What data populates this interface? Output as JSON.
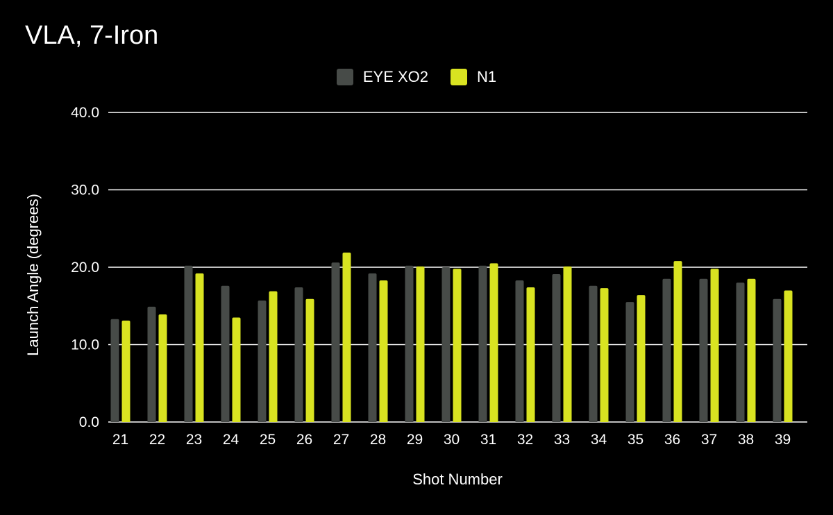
{
  "chart_data": {
    "type": "bar",
    "title": "VLA, 7-Iron",
    "xlabel": "Shot Number",
    "ylabel": "Launch Angle (degrees)",
    "ylim": [
      0,
      40
    ],
    "yticks": [
      "0.0",
      "10.0",
      "20.0",
      "30.0",
      "40.0"
    ],
    "grid": true,
    "legend_position": "top-center",
    "categories": [
      "21",
      "22",
      "23",
      "24",
      "25",
      "26",
      "27",
      "28",
      "29",
      "30",
      "31",
      "32",
      "33",
      "34",
      "35",
      "36",
      "37",
      "38",
      "39"
    ],
    "series": [
      {
        "name": "EYE XO2",
        "color": "#474b48",
        "values": [
          13.3,
          14.9,
          20.2,
          17.6,
          15.7,
          17.4,
          20.6,
          19.2,
          20.2,
          20.0,
          20.2,
          18.3,
          19.1,
          17.6,
          15.5,
          18.5,
          18.5,
          18.0,
          15.9
        ]
      },
      {
        "name": "N1",
        "color": "#d9e321",
        "values": [
          13.1,
          13.9,
          19.2,
          13.5,
          16.9,
          15.9,
          21.9,
          18.3,
          20.1,
          19.8,
          20.5,
          17.4,
          20.1,
          17.3,
          16.4,
          20.8,
          19.8,
          18.5,
          17.0
        ]
      }
    ]
  }
}
